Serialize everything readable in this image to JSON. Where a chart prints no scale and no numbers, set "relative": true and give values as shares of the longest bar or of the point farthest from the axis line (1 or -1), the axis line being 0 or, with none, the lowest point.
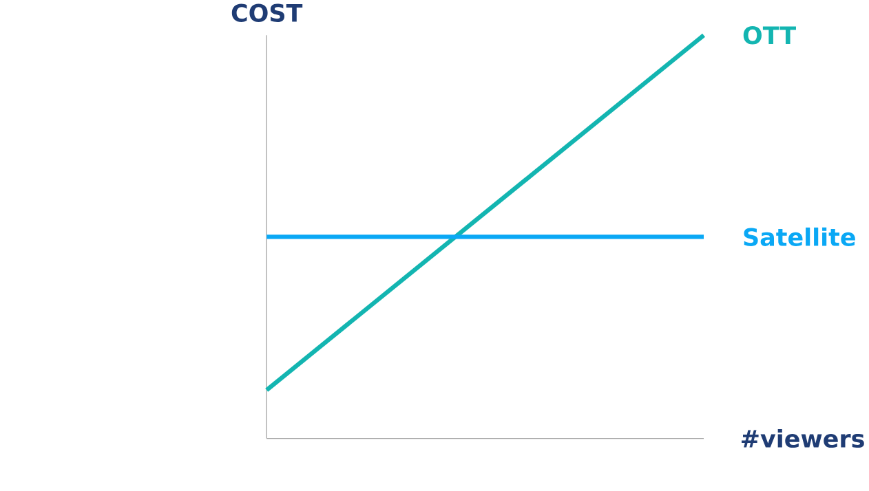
{
  "chart_data": {
    "type": "line",
    "relative": true,
    "ylabel": "COST",
    "xlabel": "#viewers",
    "categories": [
      null,
      null
    ],
    "marker": "none",
    "series": [
      {
        "name": "OTT",
        "color": "#13b5b1",
        "values": [
          0.12,
          1
        ]
      },
      {
        "name": "Satellite",
        "color": "#0aa8f5",
        "values": [
          0.5,
          0.5
        ]
      }
    ]
  }
}
